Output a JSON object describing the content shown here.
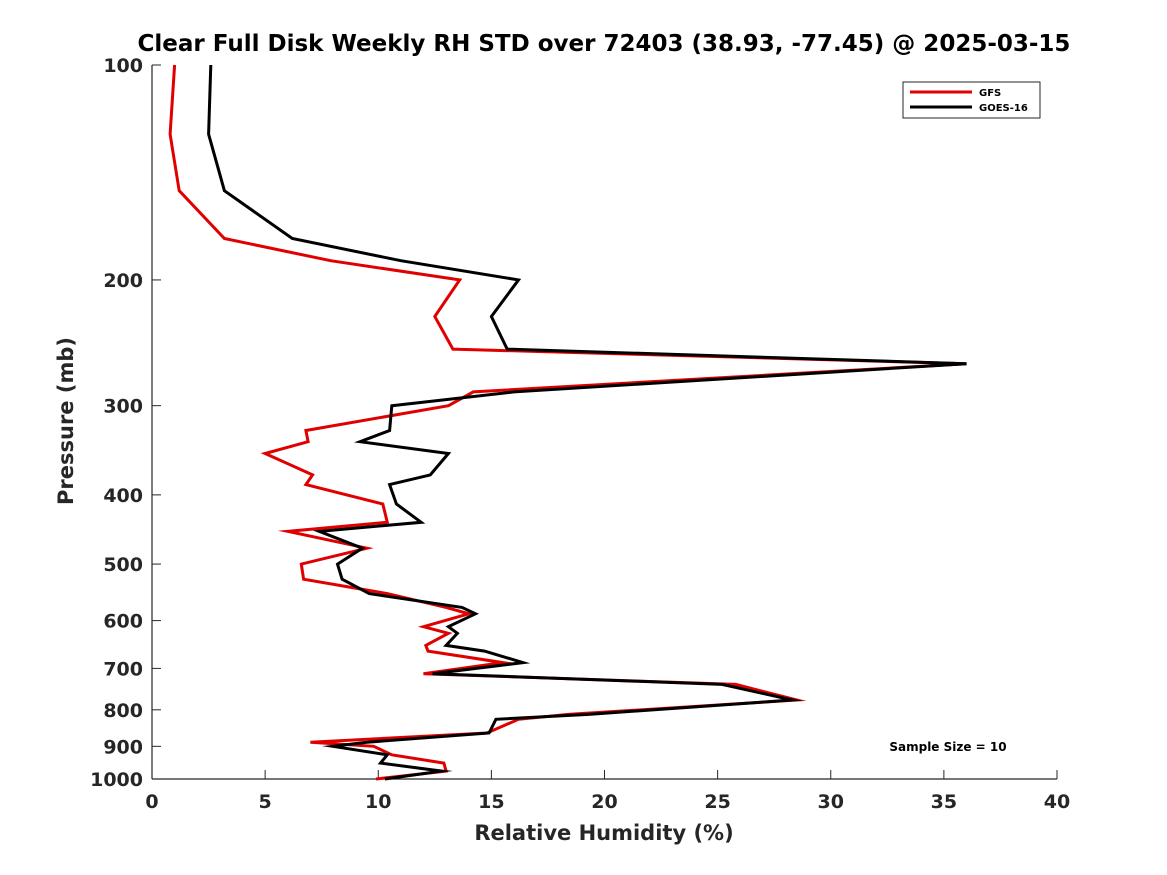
{
  "chart_data": {
    "type": "line",
    "title": "Clear Full Disk Weekly RH STD over 72403 (38.93, -77.45) @ 2025-03-15",
    "xlabel": "Relative Humidity (%)",
    "ylabel": "Pressure (mb)",
    "xlim": [
      0,
      40
    ],
    "ylim": [
      100,
      1000
    ],
    "y_scale": "log",
    "y_reversed": true,
    "x_ticks": [
      0,
      5,
      10,
      15,
      20,
      25,
      30,
      35,
      40
    ],
    "y_ticks": [
      100,
      200,
      300,
      400,
      500,
      600,
      700,
      800,
      900,
      1000
    ],
    "grid": false,
    "legend_position": "top-right",
    "annotation": "Sample Size = 10",
    "series": [
      {
        "name": "GFS",
        "color": "#e00000",
        "points": [
          [
            1.0,
            100
          ],
          [
            0.8,
            125
          ],
          [
            1.2,
            150
          ],
          [
            3.2,
            175
          ],
          [
            7.9,
            188
          ],
          [
            13.6,
            200
          ],
          [
            12.5,
            225
          ],
          [
            13.3,
            250
          ],
          [
            36.0,
            262
          ],
          [
            14.2,
            287
          ],
          [
            13.1,
            300
          ],
          [
            6.8,
            325
          ],
          [
            6.9,
            337
          ],
          [
            5.0,
            350
          ],
          [
            7.1,
            375
          ],
          [
            6.8,
            387
          ],
          [
            10.2,
            412
          ],
          [
            10.4,
            437
          ],
          [
            6.0,
            450
          ],
          [
            9.5,
            475
          ],
          [
            6.6,
            500
          ],
          [
            6.7,
            525
          ],
          [
            10.4,
            550
          ],
          [
            13.0,
            575
          ],
          [
            14.0,
            587
          ],
          [
            12.0,
            612
          ],
          [
            13.1,
            625
          ],
          [
            12.1,
            650
          ],
          [
            12.2,
            662
          ],
          [
            15.5,
            687
          ],
          [
            12.0,
            712
          ],
          [
            25.8,
            737
          ],
          [
            28.5,
            775
          ],
          [
            18.4,
            812
          ],
          [
            16.2,
            825
          ],
          [
            14.8,
            862
          ],
          [
            7.0,
            888
          ],
          [
            9.8,
            900
          ],
          [
            10.6,
            925
          ],
          [
            12.9,
            950
          ],
          [
            13.0,
            975
          ],
          [
            9.9,
            1000
          ]
        ]
      },
      {
        "name": "GOES-16",
        "color": "#000000",
        "points": [
          [
            2.6,
            100
          ],
          [
            2.5,
            125
          ],
          [
            3.2,
            150
          ],
          [
            6.2,
            175
          ],
          [
            11.0,
            188
          ],
          [
            16.2,
            200
          ],
          [
            15.0,
            225
          ],
          [
            15.7,
            250
          ],
          [
            36.0,
            262
          ],
          [
            16.0,
            287
          ],
          [
            10.6,
            300
          ],
          [
            10.5,
            325
          ],
          [
            9.2,
            337
          ],
          [
            13.1,
            350
          ],
          [
            12.3,
            375
          ],
          [
            10.5,
            387
          ],
          [
            10.8,
            412
          ],
          [
            11.9,
            437
          ],
          [
            7.4,
            450
          ],
          [
            9.3,
            475
          ],
          [
            8.2,
            500
          ],
          [
            8.4,
            525
          ],
          [
            9.6,
            550
          ],
          [
            13.7,
            575
          ],
          [
            14.3,
            587
          ],
          [
            13.1,
            612
          ],
          [
            13.5,
            625
          ],
          [
            13.0,
            650
          ],
          [
            14.7,
            662
          ],
          [
            16.4,
            687
          ],
          [
            12.4,
            712
          ],
          [
            25.2,
            737
          ],
          [
            28.3,
            775
          ],
          [
            19.3,
            812
          ],
          [
            15.2,
            825
          ],
          [
            14.9,
            862
          ],
          [
            9.5,
            888
          ],
          [
            8.0,
            900
          ],
          [
            10.4,
            925
          ],
          [
            10.1,
            950
          ],
          [
            12.8,
            975
          ],
          [
            10.3,
            1000
          ]
        ]
      }
    ]
  }
}
